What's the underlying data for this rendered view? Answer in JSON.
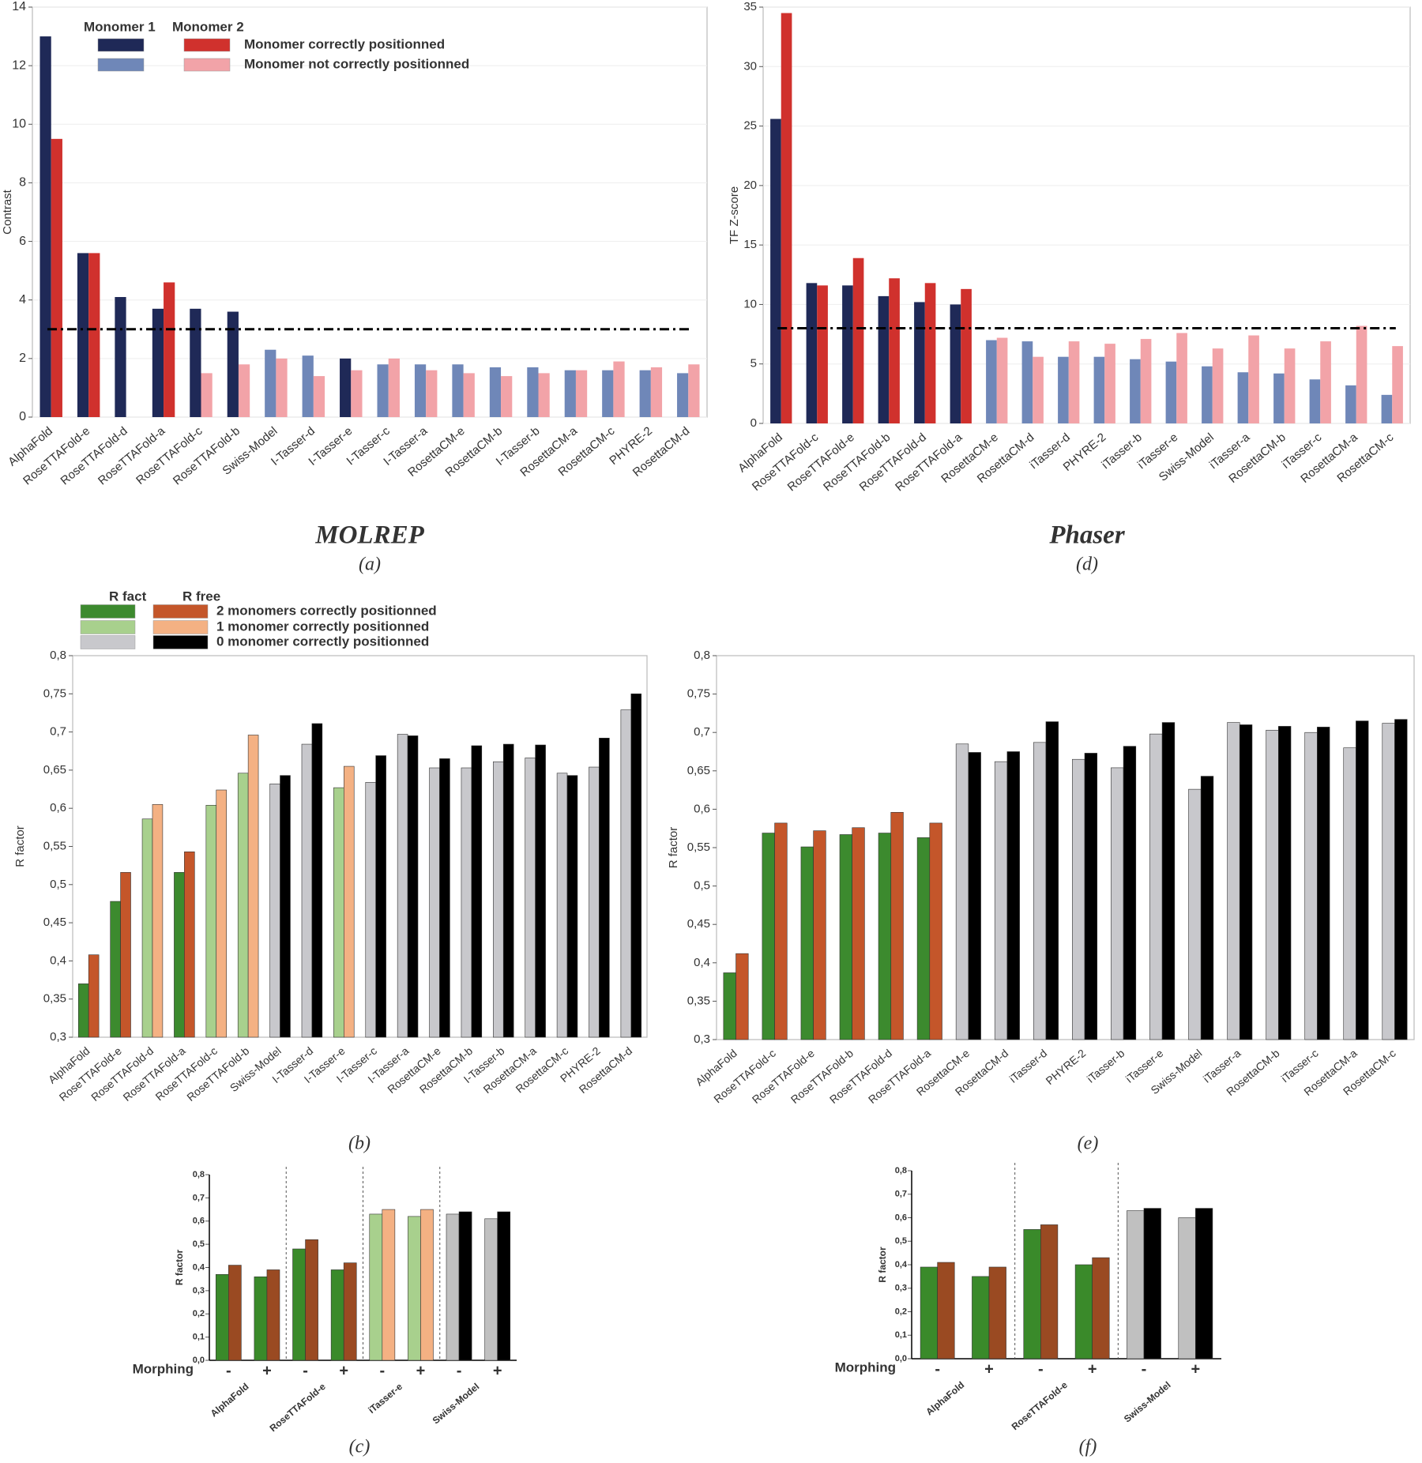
{
  "chart_data": [
    {
      "type": "bar",
      "title": "MOLREP",
      "caption": "(a)",
      "y_label": "Contrast",
      "categories": [
        "AlphaFold",
        "RoseTTAFold-e",
        "RoseTTAFold-d",
        "RoseTTAFold-a",
        "RoseTTAFold-c",
        "RoseTTAFold-b",
        "Swiss-Model",
        "I-Tasser-d",
        "I-Tasser-e",
        "I-Tasser-c",
        "I-Tasser-a",
        "RosettaCM-e",
        "RosettaCM-b",
        "I-Tasser-b",
        "RosettaCM-a",
        "RosettaCM-c",
        "PHYRE-2",
        "RosettaCM-d"
      ],
      "series": [
        {
          "name": "Monomer 1",
          "values": [
            13,
            5.6,
            4.1,
            3.7,
            3.7,
            3.6,
            2.3,
            2.1,
            2.0,
            1.8,
            1.8,
            1.8,
            1.7,
            1.7,
            1.6,
            1.6,
            1.6,
            1.5
          ],
          "colors": [
            "#1f2957",
            "#1f2957",
            "#1f2957",
            "#1f2957",
            "#1f2957",
            "#1f2957",
            "#6f87b8",
            "#6f87b8",
            "#1f2957",
            "#6f87b8",
            "#6f87b8",
            "#6f87b8",
            "#6f87b8",
            "#6f87b8",
            "#6f87b8",
            "#6f87b8",
            "#6f87b8",
            "#6f87b8"
          ]
        },
        {
          "name": "Monomer 2",
          "values": [
            9.5,
            5.6,
            null,
            4.6,
            1.5,
            1.8,
            2.0,
            1.4,
            1.6,
            2.0,
            1.6,
            1.5,
            1.4,
            1.5,
            1.6,
            1.9,
            1.7,
            1.8
          ],
          "colors": [
            "#d0312d",
            "#d0312d",
            null,
            "#d0312d",
            "#f2a3a8",
            "#f2a3a8",
            "#f2a3a8",
            "#f2a3a8",
            "#f2a3a8",
            "#f2a3a8",
            "#f2a3a8",
            "#f2a3a8",
            "#f2a3a8",
            "#f2a3a8",
            "#f2a3a8",
            "#f2a3a8",
            "#f2a3a8",
            "#f2a3a8"
          ]
        }
      ],
      "legend": [
        {
          "label": "Monomer correctly positionned",
          "colors": [
            "#1f2957",
            "#d0312d"
          ]
        },
        {
          "label": "Monomer  not correctly positionned",
          "colors": [
            "#6f87b8",
            "#f2a3a8"
          ]
        }
      ],
      "threshold": 3,
      "ylim": [
        0,
        14
      ],
      "yticks": [
        0,
        2,
        4,
        6,
        8,
        10,
        12,
        14
      ],
      "grid": true
    },
    {
      "type": "bar",
      "title": "Phaser",
      "caption": "(d)",
      "y_label": "TF Z-score",
      "categories": [
        "AlphaFold",
        "RoseTTAFold-c",
        "RoseTTAFold-e",
        "RoseTTAFold-b",
        "RoseTTAFold-d",
        "RoseTTAFold-a",
        "RosettaCM-e",
        "RosettaCM-d",
        "iTasser-d",
        "PHYRE-2",
        "iTasser-b",
        "iTasser-e",
        "Swiss-Model",
        "iTasser-a",
        "RosettaCM-b",
        "iTasser-c",
        "RosettaCM-a",
        "RosettaCM-c"
      ],
      "series": [
        {
          "values": [
            25.6,
            11.8,
            11.6,
            10.7,
            10.2,
            10.0,
            7.0,
            6.9,
            5.6,
            5.6,
            5.4,
            5.2,
            4.8,
            4.3,
            4.2,
            3.7,
            3.2,
            2.4
          ],
          "colors": [
            "#1f2957",
            "#1f2957",
            "#1f2957",
            "#1f2957",
            "#1f2957",
            "#1f2957",
            "#6f87b8",
            "#6f87b8",
            "#6f87b8",
            "#6f87b8",
            "#6f87b8",
            "#6f87b8",
            "#6f87b8",
            "#6f87b8",
            "#6f87b8",
            "#6f87b8",
            "#6f87b8",
            "#6f87b8"
          ]
        },
        {
          "values": [
            34.5,
            11.6,
            13.9,
            12.2,
            11.8,
            11.3,
            7.2,
            5.6,
            6.9,
            6.7,
            7.1,
            7.6,
            6.3,
            7.4,
            6.3,
            6.9,
            8.2,
            6.5
          ],
          "colors": [
            "#d0312d",
            "#d0312d",
            "#d0312d",
            "#d0312d",
            "#d0312d",
            "#d0312d",
            "#f2a3a8",
            "#f2a3a8",
            "#f2a3a8",
            "#f2a3a8",
            "#f2a3a8",
            "#f2a3a8",
            "#f2a3a8",
            "#f2a3a8",
            "#f2a3a8",
            "#f2a3a8",
            "#f2a3a8",
            "#f2a3a8"
          ]
        }
      ],
      "threshold": 8,
      "ylim": [
        0,
        35
      ],
      "yticks": [
        0,
        5,
        10,
        15,
        20,
        25,
        30,
        35
      ],
      "grid": true
    },
    {
      "type": "bar",
      "caption": "(b)",
      "y_label": "R factor",
      "categories": [
        "AlphaFold",
        "RoseTTAFold-e",
        "RoseTTAFold-d",
        "RoseTTAFold-a",
        "RoseTTAFold-c",
        "RoseTTAFold-b",
        "Swiss-Model",
        "I-Tasser-d",
        "I-Tasser-e",
        "I-Tasser-c",
        "I-Tasser-a",
        "RosettaCM-e",
        "RosettaCM-b",
        "I-Tasser-b",
        "RosettaCM-a",
        "RosettaCM-c",
        "PHYRE-2",
        "RosettaCM-d"
      ],
      "series": [
        {
          "name": "R fact",
          "values": [
            0.37,
            0.478,
            0.586,
            0.516,
            0.604,
            0.646,
            0.632,
            0.684,
            0.627,
            0.634,
            0.697,
            0.653,
            0.653,
            0.661,
            0.666,
            0.646,
            0.654,
            0.729
          ],
          "colors": [
            "#3c8a2e",
            "#3c8a2e",
            "#a8d08d",
            "#3c8a2e",
            "#a8d08d",
            "#a8d08d",
            "#c8c8cc",
            "#c8c8cc",
            "#a8d08d",
            "#c8c8cc",
            "#c8c8cc",
            "#c8c8cc",
            "#c8c8cc",
            "#c8c8cc",
            "#c8c8cc",
            "#c8c8cc",
            "#c8c8cc",
            "#c8c8cc"
          ]
        },
        {
          "name": "R free",
          "values": [
            0.408,
            0.516,
            0.605,
            0.543,
            0.624,
            0.696,
            0.643,
            0.711,
            0.655,
            0.669,
            0.695,
            0.665,
            0.682,
            0.684,
            0.683,
            0.643,
            0.692,
            0.75
          ],
          "colors": [
            "#c4562a",
            "#c4562a",
            "#f4b183",
            "#c4562a",
            "#f4b183",
            "#f4b183",
            "#000000",
            "#000000",
            "#f4b183",
            "#000000",
            "#000000",
            "#000000",
            "#000000",
            "#000000",
            "#000000",
            "#000000",
            "#000000",
            "#000000"
          ]
        }
      ],
      "legend": [
        {
          "label": "2 monomers correctly positionned",
          "colors": [
            "#3c8a2e",
            "#c4562a"
          ]
        },
        {
          "label": "1 monomer correctly positionned",
          "colors": [
            "#a8d08d",
            "#f4b183"
          ]
        },
        {
          "label": "0 monomer correctly positionned",
          "colors": [
            "#c8c8cc",
            "#000000"
          ]
        }
      ],
      "ylim": [
        0.3,
        0.8
      ],
      "yticks": [
        {
          "value": 0.3,
          "label": "0,3"
        },
        {
          "value": 0.35,
          "label": "0,35"
        },
        {
          "value": 0.4,
          "label": "0,4"
        },
        {
          "value": 0.45,
          "label": "0,45"
        },
        {
          "value": 0.5,
          "label": "0,5"
        },
        {
          "value": 0.55,
          "label": "0,55"
        },
        {
          "value": 0.6,
          "label": "0,6"
        },
        {
          "value": 0.65,
          "label": "0,65"
        },
        {
          "value": 0.7,
          "label": "0,7"
        },
        {
          "value": 0.75,
          "label": "0,75"
        },
        {
          "value": 0.8,
          "label": "0,8"
        }
      ],
      "grid": false
    },
    {
      "type": "bar",
      "caption": "(e)",
      "y_label": "R factor",
      "categories": [
        "AlphaFold",
        "RoseTTAFold-c",
        "RoseTTAFold-e",
        "RoseTTAFold-b",
        "RoseTTAFold-d",
        "RoseTTAFold-a",
        "RosettaCM-e",
        "RosettaCM-d",
        "iTasser-d",
        "PHYRE-2",
        "iTasser-b",
        "iTasser-e",
        "Swiss-Model",
        "iTasser-a",
        "RosettaCM-b",
        "iTasser-c",
        "RosettaCM-a",
        "RosettaCM-c"
      ],
      "series": [
        {
          "values": [
            0.387,
            0.569,
            0.551,
            0.567,
            0.569,
            0.563,
            0.685,
            0.662,
            0.687,
            0.665,
            0.654,
            0.698,
            0.626,
            0.713,
            0.703,
            0.7,
            0.68,
            0.712
          ],
          "colors": [
            "#3c8a2e",
            "#3c8a2e",
            "#3c8a2e",
            "#3c8a2e",
            "#3c8a2e",
            "#3c8a2e",
            "#c8c8cc",
            "#c8c8cc",
            "#c8c8cc",
            "#c8c8cc",
            "#c8c8cc",
            "#c8c8cc",
            "#c8c8cc",
            "#c8c8cc",
            "#c8c8cc",
            "#c8c8cc",
            "#c8c8cc",
            "#c8c8cc"
          ]
        },
        {
          "values": [
            0.412,
            0.582,
            0.572,
            0.576,
            0.596,
            0.582,
            0.674,
            0.675,
            0.714,
            0.673,
            0.682,
            0.713,
            0.643,
            0.71,
            0.708,
            0.707,
            0.715,
            0.717
          ],
          "colors": [
            "#c4562a",
            "#c4562a",
            "#c4562a",
            "#c4562a",
            "#c4562a",
            "#c4562a",
            "#000000",
            "#000000",
            "#000000",
            "#000000",
            "#000000",
            "#000000",
            "#000000",
            "#000000",
            "#000000",
            "#000000",
            "#000000",
            "#000000"
          ]
        }
      ],
      "ylim": [
        0.3,
        0.8
      ],
      "yticks": [
        {
          "value": 0.3,
          "label": "0,3"
        },
        {
          "value": 0.35,
          "label": "0,35"
        },
        {
          "value": 0.4,
          "label": "0,4"
        },
        {
          "value": 0.45,
          "label": "0,45"
        },
        {
          "value": 0.5,
          "label": "0,5"
        },
        {
          "value": 0.55,
          "label": "0,55"
        },
        {
          "value": 0.6,
          "label": "0,6"
        },
        {
          "value": 0.65,
          "label": "0,65"
        },
        {
          "value": 0.7,
          "label": "0,7"
        },
        {
          "value": 0.75,
          "label": "0,75"
        },
        {
          "value": 0.8,
          "label": "0,8"
        }
      ],
      "grid": false
    },
    {
      "type": "bar",
      "caption": "(c)",
      "y_label": "R factor",
      "x_label": "Morphing",
      "categories": [
        "-",
        "+",
        "-",
        "+",
        "-",
        "+",
        "-",
        "+"
      ],
      "groups": [
        "AlphaFold",
        "RoseTTAFold-e",
        "iTasser-e",
        "Swiss-Model"
      ],
      "series": [
        {
          "values": [
            0.37,
            0.36,
            0.48,
            0.39,
            0.63,
            0.62,
            0.63,
            0.61
          ],
          "colors": [
            "#3a8a2a",
            "#3a8a2a",
            "#3a8a2a",
            "#3a8a2a",
            "#a8d08d",
            "#a8d08d",
            "#c0c0c0",
            "#c0c0c0"
          ]
        },
        {
          "values": [
            0.41,
            0.39,
            0.52,
            0.42,
            0.65,
            0.65,
            0.64,
            0.64
          ],
          "colors": [
            "#9a4a22",
            "#9a4a22",
            "#9a4a22",
            "#9a4a22",
            "#f4b183",
            "#f4b183",
            "#000000",
            "#000000"
          ]
        }
      ],
      "ylim": [
        0,
        0.8
      ],
      "yticks": [
        {
          "value": 0,
          "label": "0,0"
        },
        {
          "value": 0.1,
          "label": "0,1"
        },
        {
          "value": 0.2,
          "label": "0,2"
        },
        {
          "value": 0.3,
          "label": "0,3"
        },
        {
          "value": 0.4,
          "label": "0,4"
        },
        {
          "value": 0.5,
          "label": "0,5"
        },
        {
          "value": 0.6,
          "label": "0,6"
        },
        {
          "value": 0.7,
          "label": "0,7"
        },
        {
          "value": 0.8,
          "label": "0,8"
        }
      ],
      "grid": false
    },
    {
      "type": "bar",
      "caption": "(f)",
      "y_label": "R factor",
      "x_label": "Morphing",
      "categories": [
        "-",
        "+",
        "-",
        "+",
        "-",
        "+"
      ],
      "groups": [
        "AlphaFold",
        "RoseTTAFold-e",
        "Swiss-Model"
      ],
      "series": [
        {
          "values": [
            0.39,
            0.35,
            0.55,
            0.4,
            0.63,
            0.6
          ],
          "colors": [
            "#3a8a2a",
            "#3a8a2a",
            "#3a8a2a",
            "#3a8a2a",
            "#c0c0c0",
            "#c0c0c0"
          ]
        },
        {
          "values": [
            0.41,
            0.39,
            0.57,
            0.43,
            0.64,
            0.64
          ],
          "colors": [
            "#9a4a22",
            "#9a4a22",
            "#9a4a22",
            "#9a4a22",
            "#000000",
            "#000000"
          ]
        }
      ],
      "ylim": [
        0,
        0.8
      ],
      "yticks": [
        {
          "value": 0,
          "label": "0,0"
        },
        {
          "value": 0.1,
          "label": "0,1"
        },
        {
          "value": 0.2,
          "label": "0,2"
        },
        {
          "value": 0.3,
          "label": "0,3"
        },
        {
          "value": 0.4,
          "label": "0,4"
        },
        {
          "value": 0.5,
          "label": "0,5"
        },
        {
          "value": 0.6,
          "label": "0,6"
        },
        {
          "value": 0.7,
          "label": "0,7"
        },
        {
          "value": 0.8,
          "label": "0,8"
        }
      ],
      "grid": false
    }
  ]
}
